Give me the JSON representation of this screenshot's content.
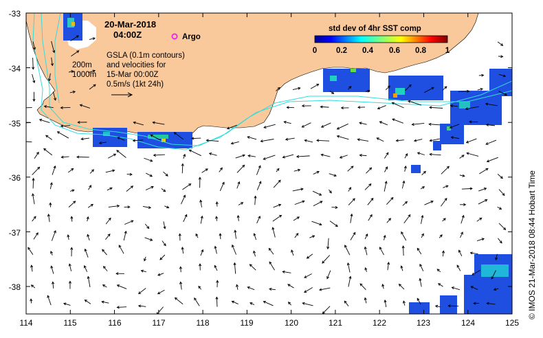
{
  "title": {
    "date": "20-Mar-2018",
    "time": "04:00Z"
  },
  "argo": {
    "label": "Argo",
    "color": "#ee22ee"
  },
  "notes": {
    "line1": "GSLA (0.1m contours)",
    "line2": "and velocities for",
    "line3": "15-Mar 00:00Z",
    "scale": "0.5m/s (1kt 24h)"
  },
  "contours": {
    "label_200": "200m",
    "label_1000": "1000m",
    "color": "#33dddd"
  },
  "colorbar": {
    "title": "std dev of 4hr SST comp",
    "ticks": [
      "0",
      "0.2",
      "0.4",
      "0.6",
      "0.8",
      "1"
    ]
  },
  "axes": {
    "x_ticks": [
      "114",
      "115",
      "116",
      "117",
      "118",
      "119",
      "120",
      "121",
      "122",
      "123",
      "124",
      "125"
    ],
    "y_ticks": [
      "-33",
      "-34",
      "-35",
      "-36",
      "-37",
      "-38"
    ]
  },
  "credit": "© IMOS 21-Mar-2018 08:44 Hobart Time",
  "colors": {
    "land": "#f9c89b",
    "contour": "#33dddd",
    "arrow": "#000000"
  }
}
